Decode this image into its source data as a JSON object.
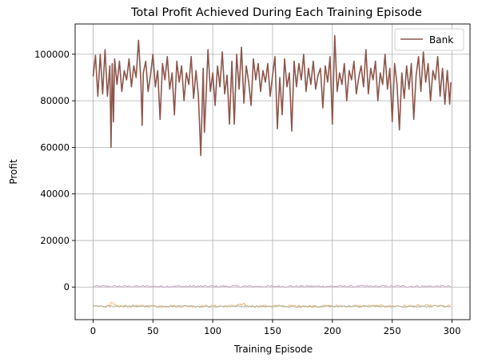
{
  "chart_data": {
    "type": "line",
    "title": "Total Profit Achieved During Each Training Episode",
    "xlabel": "Training Episode",
    "ylabel": "Profit",
    "xlim": [
      -15,
      315
    ],
    "ylim": [
      -14000,
      113000
    ],
    "xticks": [
      0,
      50,
      100,
      150,
      200,
      250,
      300
    ],
    "yticks": [
      0,
      20000,
      40000,
      60000,
      80000,
      100000
    ],
    "grid": true,
    "legend": {
      "placement": "top-right",
      "entries": [
        "Bank"
      ]
    },
    "x_range": [
      0,
      299
    ],
    "series": [
      {
        "name": "Bank",
        "color": "#8c564b",
        "points": [
          [
            0,
            90500
          ],
          [
            2,
            99500
          ],
          [
            4,
            82000
          ],
          [
            6,
            100000
          ],
          [
            8,
            83000
          ],
          [
            10,
            102000
          ],
          [
            12,
            82000
          ],
          [
            14,
            95000
          ],
          [
            15,
            60000
          ],
          [
            16,
            96000
          ],
          [
            17,
            71000
          ],
          [
            18,
            98000
          ],
          [
            20,
            87000
          ],
          [
            22,
            97000
          ],
          [
            24,
            84000
          ],
          [
            26,
            93000
          ],
          [
            28,
            89000
          ],
          [
            30,
            98000
          ],
          [
            32,
            86000
          ],
          [
            34,
            95000
          ],
          [
            36,
            90000
          ],
          [
            38,
            106000
          ],
          [
            40,
            88000
          ],
          [
            41,
            69500
          ],
          [
            42,
            92000
          ],
          [
            44,
            97000
          ],
          [
            46,
            84000
          ],
          [
            48,
            91000
          ],
          [
            50,
            100000
          ],
          [
            52,
            86000
          ],
          [
            54,
            93000
          ],
          [
            56,
            72000
          ],
          [
            58,
            96000
          ],
          [
            60,
            89000
          ],
          [
            62,
            99000
          ],
          [
            64,
            85000
          ],
          [
            66,
            92000
          ],
          [
            68,
            74000
          ],
          [
            70,
            97000
          ],
          [
            72,
            88000
          ],
          [
            74,
            95000
          ],
          [
            76,
            80000
          ],
          [
            78,
            92000
          ],
          [
            80,
            87000
          ],
          [
            82,
            99000
          ],
          [
            84,
            81000
          ],
          [
            86,
            93000
          ],
          [
            88,
            82000
          ],
          [
            90,
            56500
          ],
          [
            92,
            94000
          ],
          [
            93,
            66500
          ],
          [
            94,
            77000
          ],
          [
            96,
            102000
          ],
          [
            98,
            84000
          ],
          [
            100,
            92000
          ],
          [
            102,
            78000
          ],
          [
            104,
            95000
          ],
          [
            106,
            86000
          ],
          [
            108,
            101000
          ],
          [
            110,
            83000
          ],
          [
            112,
            91000
          ],
          [
            114,
            70000
          ],
          [
            116,
            97000
          ],
          [
            118,
            70000
          ],
          [
            120,
            100000
          ],
          [
            122,
            85000
          ],
          [
            124,
            103000
          ],
          [
            126,
            79000
          ],
          [
            128,
            95000
          ],
          [
            130,
            88000
          ],
          [
            132,
            78000
          ],
          [
            134,
            98000
          ],
          [
            136,
            89000
          ],
          [
            138,
            96000
          ],
          [
            140,
            84000
          ],
          [
            142,
            93000
          ],
          [
            144,
            88000
          ],
          [
            146,
            96000
          ],
          [
            148,
            82000
          ],
          [
            150,
            91000
          ],
          [
            152,
            99000
          ],
          [
            154,
            68000
          ],
          [
            156,
            90000
          ],
          [
            158,
            74000
          ],
          [
            160,
            98000
          ],
          [
            162,
            86000
          ],
          [
            164,
            92000
          ],
          [
            166,
            67000
          ],
          [
            168,
            97000
          ],
          [
            170,
            86000
          ],
          [
            172,
            96000
          ],
          [
            174,
            89000
          ],
          [
            176,
            100000
          ],
          [
            178,
            84000
          ],
          [
            180,
            94000
          ],
          [
            182,
            87000
          ],
          [
            184,
            97000
          ],
          [
            186,
            85000
          ],
          [
            188,
            91000
          ],
          [
            190,
            94000
          ],
          [
            192,
            77000
          ],
          [
            194,
            95000
          ],
          [
            196,
            88000
          ],
          [
            198,
            99000
          ],
          [
            200,
            70000
          ],
          [
            202,
            108000
          ],
          [
            204,
            84000
          ],
          [
            206,
            92000
          ],
          [
            208,
            87000
          ],
          [
            210,
            96000
          ],
          [
            212,
            80000
          ],
          [
            214,
            93000
          ],
          [
            216,
            89000
          ],
          [
            218,
            97000
          ],
          [
            220,
            83000
          ],
          [
            222,
            90000
          ],
          [
            224,
            95000
          ],
          [
            226,
            86000
          ],
          [
            228,
            102000
          ],
          [
            230,
            83000
          ],
          [
            232,
            94000
          ],
          [
            234,
            89000
          ],
          [
            236,
            97000
          ],
          [
            238,
            80000
          ],
          [
            240,
            92000
          ],
          [
            242,
            87000
          ],
          [
            244,
            100000
          ],
          [
            246,
            85000
          ],
          [
            248,
            94000
          ],
          [
            250,
            71000
          ],
          [
            252,
            96000
          ],
          [
            254,
            87000
          ],
          [
            256,
            67500
          ],
          [
            258,
            92000
          ],
          [
            260,
            81000
          ],
          [
            262,
            95000
          ],
          [
            264,
            85000
          ],
          [
            266,
            96000
          ],
          [
            268,
            72000
          ],
          [
            270,
            91000
          ],
          [
            272,
            99000
          ],
          [
            274,
            84000
          ],
          [
            276,
            101000
          ],
          [
            278,
            88000
          ],
          [
            280,
            96000
          ],
          [
            282,
            80000
          ],
          [
            284,
            93000
          ],
          [
            286,
            89000
          ],
          [
            288,
            99000
          ],
          [
            290,
            82000
          ],
          [
            292,
            94000
          ],
          [
            294,
            78500
          ],
          [
            296,
            93000
          ],
          [
            298,
            78500
          ],
          [
            299,
            88000
          ]
        ]
      },
      {
        "color": "#c5a4c4",
        "level": 300,
        "amplitude": 450
      },
      {
        "color": "#f5b26b",
        "level": -8200,
        "amplitude": 550
      },
      {
        "color": "#a9b7a9",
        "level": -8300,
        "amplitude": 350
      }
    ]
  }
}
